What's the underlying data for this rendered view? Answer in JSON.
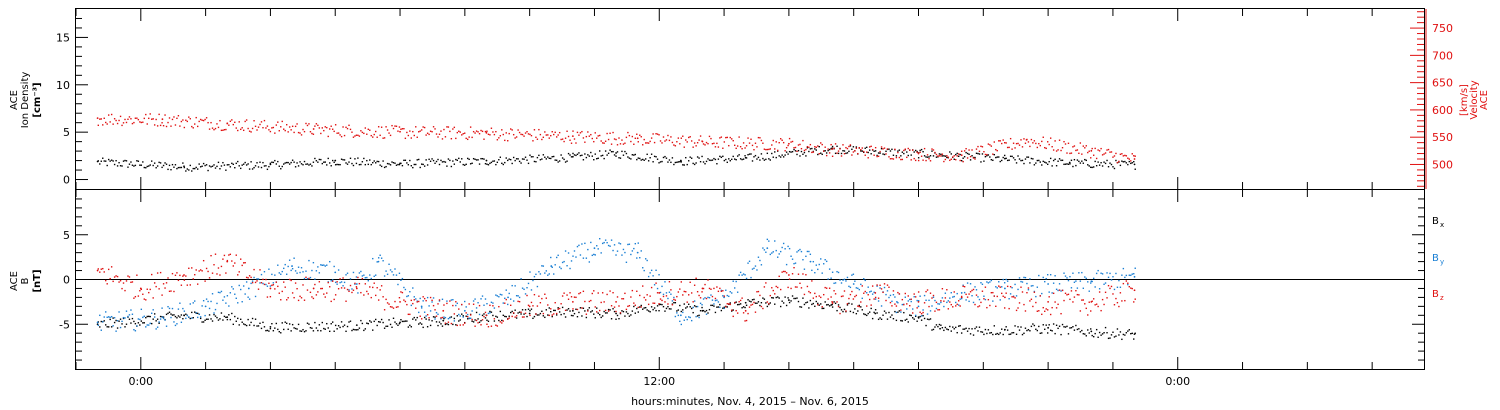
{
  "chart_data": [
    {
      "type": "scatter",
      "panel": "plasma",
      "ylabel_left": [
        "ACE",
        "Ion Density",
        "[cm⁻³]"
      ],
      "ylabel_right": [
        "ACE",
        "Velocity",
        "[km/s]"
      ],
      "ylim_left": [
        -1,
        18
      ],
      "ylim_right": [
        455,
        785
      ],
      "yticks_left": [
        "0",
        "5",
        "10",
        "15"
      ],
      "yticks_left_values": [
        0,
        5,
        10,
        15
      ],
      "yticks_right": [
        "500",
        "550",
        "600",
        "650",
        "700",
        "750"
      ],
      "yticks_right_values": [
        500,
        550,
        600,
        650,
        700,
        750
      ],
      "series": [
        {
          "axis": "left",
          "color": "#000000",
          "x_hours": [
            -1,
            1,
            3,
            4.5,
            6,
            8,
            10,
            11,
            12.5,
            14,
            16,
            18,
            20,
            21.5,
            23
          ],
          "values": [
            1.9,
            1.4,
            1.6,
            2.0,
            1.7,
            2.0,
            2.4,
            2.8,
            2.0,
            2.3,
            3.3,
            2.8,
            2.2,
            1.8,
            1.6
          ]
        },
        {
          "axis": "right",
          "color": "#e01010",
          "x_hours": [
            -1,
            0.5,
            2,
            4,
            6,
            8,
            10,
            11.5,
            13,
            15,
            16,
            18,
            19,
            20.5,
            22,
            23
          ],
          "values": [
            585,
            583,
            575,
            565,
            560,
            558,
            552,
            548,
            542,
            538,
            528,
            520,
            517,
            545,
            525,
            510
          ]
        }
      ]
    },
    {
      "type": "scatter",
      "panel": "magnetic-field",
      "ylabel_left": [
        "ACE",
        "B",
        "[nT]"
      ],
      "ylim": [
        -10,
        10
      ],
      "yticks": [
        "-5",
        "0",
        "5"
      ],
      "yticks_values": [
        -5,
        0,
        5
      ],
      "zero_line": true,
      "legend": [
        {
          "label": "B",
          "sub": "x",
          "color": "#000000"
        },
        {
          "label": "B",
          "sub": "y",
          "color": "#1a7fd4"
        },
        {
          "label": "B",
          "sub": "z",
          "color": "#e01010"
        }
      ],
      "series": [
        {
          "name": "Bx",
          "color": "#000000",
          "x_hours": [
            -1,
            1,
            2,
            3,
            5,
            6,
            7,
            8,
            9,
            10,
            11,
            12,
            13,
            14,
            15,
            16,
            17,
            18,
            18.5,
            20,
            21,
            22,
            23
          ],
          "values": [
            -5.0,
            -4.0,
            -4.2,
            -5.3,
            -5.1,
            -4.8,
            -4.6,
            -4.0,
            -3.8,
            -3.5,
            -3.8,
            -2.8,
            -3.5,
            -2.6,
            -2.3,
            -2.8,
            -3.8,
            -4.2,
            -5.5,
            -5.6,
            -5.4,
            -5.8,
            -6.1
          ]
        },
        {
          "name": "By",
          "color": "#1a7fd4",
          "x_hours": [
            -1,
            0.5,
            1.5,
            2.5,
            3.5,
            4.5,
            5,
            5.5,
            6.5,
            7.5,
            8.5,
            9.5,
            10.5,
            11.5,
            12.5,
            13.5,
            14.5,
            15.5,
            16.5,
            17.5,
            18,
            19,
            20,
            21,
            22,
            23
          ],
          "values": [
            -4.8,
            -4.2,
            -3.0,
            -1.0,
            1.5,
            0.8,
            -0.5,
            2.0,
            -3.0,
            -3.5,
            -2.0,
            1.5,
            3.5,
            3.0,
            -4.0,
            -2.0,
            3.5,
            2.0,
            -0.5,
            -2.5,
            -3.0,
            -1.5,
            -1.0,
            -0.5,
            -0.2,
            0.3
          ]
        },
        {
          "name": "Bz",
          "color": "#e01010",
          "x_hours": [
            -1,
            0,
            1,
            2,
            3,
            4,
            5,
            6,
            7,
            8,
            9,
            10,
            11,
            12,
            13,
            14,
            15,
            16,
            17,
            18,
            19,
            20,
            21,
            22,
            23
          ],
          "values": [
            1.0,
            -1.0,
            0.5,
            2.0,
            -1.0,
            -1.0,
            -1.0,
            -2.5,
            -3.5,
            -4.0,
            -3.0,
            -2.5,
            -2.5,
            -1.5,
            -1.0,
            -3.5,
            0.5,
            -2.5,
            -1.5,
            -2.5,
            -2.0,
            -2.0,
            -2.5,
            -2.5,
            -1.2
          ]
        }
      ]
    }
  ],
  "x_axis": {
    "range_hours": [
      -1.5,
      29.7
    ],
    "tick_labels": [
      "0:00",
      "12:00",
      "0:00"
    ],
    "tick_hours": [
      0,
      12,
      24
    ],
    "xlabel": "hours:minutes, Nov.  4, 2015 – Nov.  6, 2015"
  }
}
